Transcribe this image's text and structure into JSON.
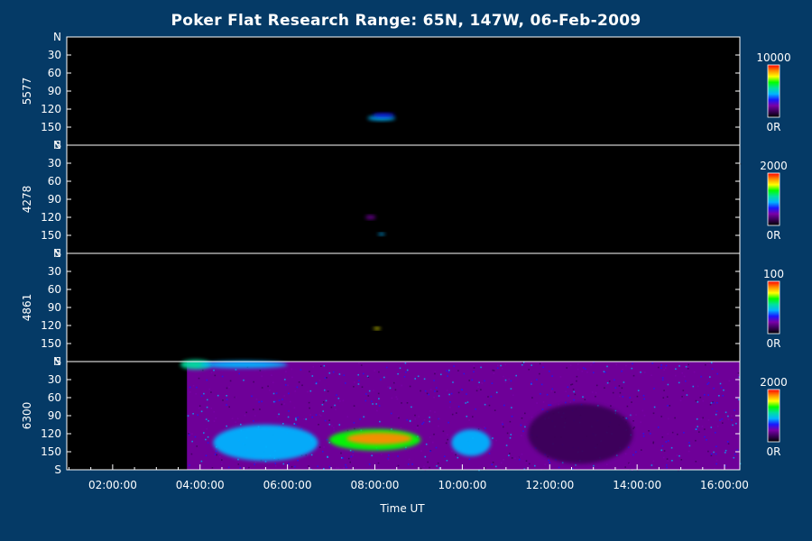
{
  "chart_data": {
    "type": "heatmap",
    "title": "Poker Flat Research Range: 65N, 147W, 06-Feb-2009",
    "xlabel": "Time UT",
    "x_tick_labels": [
      "02:00:00",
      "04:00:00",
      "06:00:00",
      "08:00:00",
      "10:00:00",
      "12:00:00",
      "14:00:00",
      "16:00:00"
    ],
    "xlim_hours": [
      0.95,
      16.35
    ],
    "y_tick_labels": [
      "N",
      "30",
      "60",
      "90",
      "120",
      "150",
      "S"
    ],
    "y_tick_values": [
      0,
      30,
      60,
      90,
      120,
      150,
      180
    ],
    "ylim": [
      0,
      180
    ],
    "data_start_hour": 3.7,
    "colormap": [
      "#000000",
      "#3a0058",
      "#7a00a8",
      "#1818ff",
      "#00b4ff",
      "#00e0a0",
      "#00ff00",
      "#ffff00",
      "#ff8c00",
      "#ff0000"
    ],
    "panels": [
      {
        "name": "5577",
        "cbar_max": "10000",
        "cbar_min": "0R",
        "background_level": 0.01,
        "features": [
          {
            "t": 8.15,
            "angle": 135,
            "dt": 0.32,
            "dangle": 4,
            "level": 0.45
          },
          {
            "t": 8.2,
            "angle": 130,
            "dt": 0.25,
            "dangle": 3,
            "level": 0.35
          }
        ]
      },
      {
        "name": "4278",
        "cbar_max": "2000",
        "cbar_min": "0R",
        "background_level": 0.03,
        "features": [
          {
            "t": 7.9,
            "angle": 120,
            "dt": 0.12,
            "dangle": 3,
            "level": 0.3
          },
          {
            "t": 8.15,
            "angle": 148,
            "dt": 0.08,
            "dangle": 2,
            "level": 0.45
          }
        ]
      },
      {
        "name": "4861",
        "cbar_max": "100",
        "cbar_min": "0R",
        "background_level": 0.02,
        "features": [
          {
            "t": 8.05,
            "angle": 125,
            "dt": 0.08,
            "dangle": 2,
            "level": 0.85
          }
        ]
      },
      {
        "name": "6300",
        "cbar_max": "2000",
        "cbar_min": "0R",
        "background_level": 0.33,
        "features": [
          {
            "t": 3.9,
            "angle": 5,
            "dt": 0.35,
            "dangle": 8,
            "level": 0.6
          },
          {
            "t": 5.0,
            "angle": 5,
            "dt": 1.0,
            "dangle": 6,
            "level": 0.5
          },
          {
            "t": 8.0,
            "angle": 130,
            "dt": 1.05,
            "dangle": 18,
            "level": 0.68
          },
          {
            "t": 8.1,
            "angle": 128,
            "dt": 0.75,
            "dangle": 10,
            "level": 0.95
          },
          {
            "t": 10.2,
            "angle": 135,
            "dt": 0.45,
            "dangle": 22,
            "level": 0.55
          },
          {
            "t": 5.5,
            "angle": 135,
            "dt": 1.2,
            "dangle": 30,
            "level": 0.45
          },
          {
            "t": 12.7,
            "angle": 120,
            "dt": 1.2,
            "dangle": 50,
            "level": 0.22
          }
        ]
      }
    ]
  }
}
